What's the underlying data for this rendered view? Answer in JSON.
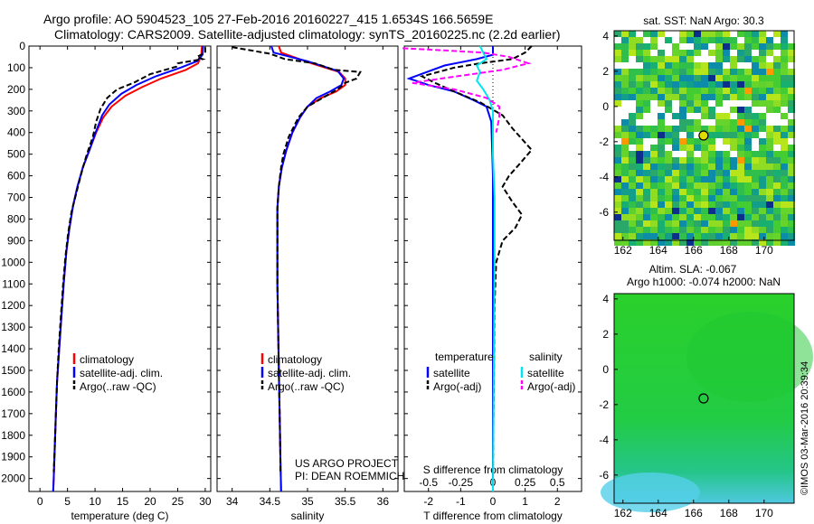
{
  "header": {
    "title_line1": "Argo profile: AO 5904523_105 27-Feb-2016 20160227_415 1.6534S 166.5659E",
    "title_line2": "Climatology: CARS2009. Satellite-adjusted climatology: synTS_20160225.nc (2.2d earlier)"
  },
  "chart_data": [
    {
      "id": "temperature",
      "type": "line",
      "xlabel": "temperature (deg C)",
      "ylabel": "",
      "xlim": [
        -2,
        31
      ],
      "ylim": [
        2060,
        0
      ],
      "xticks": [
        0,
        5,
        10,
        15,
        20,
        25,
        30
      ],
      "yticks": [
        0,
        100,
        200,
        300,
        400,
        500,
        600,
        700,
        800,
        900,
        1000,
        1100,
        1200,
        1300,
        1400,
        1500,
        1600,
        1700,
        1800,
        1900,
        2000
      ],
      "legend": [
        "climatology",
        "satellite-adj. clim.",
        "Argo(..raw -QC)"
      ],
      "series": [
        {
          "name": "climatology",
          "color": "#ff0000",
          "dash": "",
          "points": [
            [
              29.4,
              0
            ],
            [
              29.3,
              40
            ],
            [
              28.7,
              80
            ],
            [
              26.5,
              110
            ],
            [
              22,
              150
            ],
            [
              18.5,
              190
            ],
            [
              15.5,
              230
            ],
            [
              13,
              280
            ],
            [
              11.5,
              330
            ],
            [
              10.2,
              400
            ],
            [
              9,
              480
            ],
            [
              7.8,
              560
            ],
            [
              6.8,
              650
            ],
            [
              6,
              740
            ],
            [
              5.3,
              850
            ],
            [
              4.8,
              950
            ],
            [
              4.3,
              1100
            ],
            [
              3.9,
              1250
            ],
            [
              3.5,
              1400
            ],
            [
              3.1,
              1550
            ],
            [
              2.9,
              1700
            ],
            [
              2.7,
              1850
            ],
            [
              2.5,
              2000
            ],
            [
              2.4,
              2060
            ]
          ]
        },
        {
          "name": "satellite-adj. clim.",
          "color": "#0000ff",
          "dash": "",
          "points": [
            [
              29.6,
              0
            ],
            [
              29.5,
              40
            ],
            [
              28.5,
              70
            ],
            [
              25.5,
              100
            ],
            [
              21,
              140
            ],
            [
              17.5,
              180
            ],
            [
              14.8,
              220
            ],
            [
              12.6,
              270
            ],
            [
              11.3,
              320
            ],
            [
              10.1,
              400
            ],
            [
              9,
              480
            ],
            [
              7.8,
              560
            ],
            [
              6.8,
              650
            ],
            [
              6,
              740
            ],
            [
              5.3,
              850
            ],
            [
              4.8,
              950
            ],
            [
              4.3,
              1100
            ],
            [
              3.9,
              1250
            ],
            [
              3.5,
              1400
            ],
            [
              3.1,
              1550
            ],
            [
              2.9,
              1700
            ],
            [
              2.7,
              1850
            ],
            [
              2.5,
              2000
            ],
            [
              2.4,
              2060
            ]
          ]
        },
        {
          "name": "Argo(..raw -QC)",
          "color": "#000000",
          "dash": "6,3",
          "points": [
            [
              30,
              5
            ],
            [
              30,
              30
            ],
            [
              28.5,
              50
            ],
            [
              29.5,
              60
            ],
            [
              25,
              80
            ],
            [
              24.8,
              95
            ],
            [
              20,
              130
            ],
            [
              17,
              170
            ],
            [
              14,
              200
            ],
            [
              12.2,
              240
            ],
            [
              11,
              290
            ],
            [
              10.2,
              350
            ],
            [
              9.6,
              420
            ],
            [
              8.5,
              500
            ],
            [
              7.6,
              580
            ],
            [
              6.7,
              670
            ],
            [
              5.7,
              770
            ],
            [
              5.1,
              870
            ],
            [
              4.6,
              980
            ],
            [
              4.2,
              1100
            ],
            [
              3.8,
              1250
            ],
            [
              3.4,
              1400
            ],
            [
              3.1,
              1550
            ],
            [
              2.9,
              1700
            ],
            [
              2.7,
              1850
            ],
            [
              2.5,
              1970
            ]
          ]
        }
      ]
    },
    {
      "id": "salinity",
      "type": "line",
      "xlabel": "salinity",
      "xlim": [
        33.8,
        36.2
      ],
      "ylim": [
        2060,
        0
      ],
      "xticks": [
        34,
        34.5,
        35,
        35.5,
        36
      ],
      "legend": [
        "climatology",
        "satellite-adj. clim.",
        "Argo(..raw -QC)"
      ],
      "series": [
        {
          "name": "climatology",
          "color": "#ff0000",
          "dash": "",
          "points": [
            [
              34.62,
              0
            ],
            [
              34.65,
              30
            ],
            [
              35.05,
              80
            ],
            [
              35.42,
              120
            ],
            [
              35.5,
              150
            ],
            [
              35.5,
              180
            ],
            [
              35.38,
              210
            ],
            [
              35.18,
              240
            ],
            [
              35.0,
              280
            ],
            [
              34.9,
              330
            ],
            [
              34.8,
              400
            ],
            [
              34.72,
              480
            ],
            [
              34.66,
              560
            ],
            [
              34.62,
              650
            ],
            [
              34.6,
              750
            ],
            [
              34.6,
              900
            ],
            [
              34.6,
              1100
            ],
            [
              34.61,
              1300
            ],
            [
              34.62,
              1500
            ],
            [
              34.63,
              1700
            ],
            [
              34.64,
              1900
            ],
            [
              34.65,
              2060
            ]
          ]
        },
        {
          "name": "satellite-adj. clim.",
          "color": "#0000ff",
          "dash": "",
          "points": [
            [
              34.52,
              0
            ],
            [
              34.55,
              30
            ],
            [
              35.0,
              70
            ],
            [
              35.4,
              115
            ],
            [
              35.48,
              150
            ],
            [
              35.45,
              180
            ],
            [
              35.3,
              210
            ],
            [
              35.12,
              240
            ],
            [
              35.0,
              280
            ],
            [
              34.9,
              330
            ],
            [
              34.8,
              400
            ],
            [
              34.72,
              480
            ],
            [
              34.66,
              560
            ],
            [
              34.62,
              650
            ],
            [
              34.6,
              750
            ],
            [
              34.6,
              900
            ],
            [
              34.6,
              1100
            ],
            [
              34.61,
              1300
            ],
            [
              34.62,
              1500
            ],
            [
              34.63,
              1700
            ],
            [
              34.64,
              1900
            ],
            [
              34.65,
              2060
            ]
          ]
        },
        {
          "name": "Argo(..raw -QC)",
          "color": "#000000",
          "dash": "6,3",
          "points": [
            [
              34.0,
              5
            ],
            [
              34.25,
              20
            ],
            [
              34.5,
              35
            ],
            [
              34.7,
              60
            ],
            [
              35.1,
              80
            ],
            [
              35.35,
              110
            ],
            [
              35.7,
              120
            ],
            [
              35.65,
              150
            ],
            [
              35.5,
              170
            ],
            [
              35.4,
              200
            ],
            [
              35.2,
              240
            ],
            [
              35.0,
              280
            ],
            [
              34.88,
              330
            ],
            [
              34.75,
              420
            ],
            [
              34.68,
              500
            ],
            [
              34.65,
              560
            ],
            [
              34.62,
              650
            ],
            [
              34.6,
              750
            ],
            [
              34.6,
              900
            ],
            [
              34.6,
              1100
            ],
            [
              34.61,
              1300
            ],
            [
              34.62,
              1500
            ],
            [
              34.63,
              1700
            ],
            [
              34.64,
              1900
            ],
            [
              34.64,
              1970
            ]
          ]
        }
      ],
      "annotations": [
        "US ARGO PROJECT",
        "PI: DEAN ROEMMICH"
      ]
    },
    {
      "id": "difference",
      "type": "line",
      "xlabel": "T difference from climatology",
      "top_label": "S difference from climatology",
      "xlim": [
        -2.75,
        2.75
      ],
      "ylim": [
        2060,
        0
      ],
      "xticks": [
        -2,
        -1,
        0,
        1,
        2
      ],
      "top_ticks": [
        "-0.5",
        "-0.25",
        "0",
        "0.25",
        "0.5"
      ],
      "top_tick_values": [
        -2,
        -1,
        0,
        1,
        2
      ],
      "legend_headers": [
        "temperature",
        "salinity"
      ],
      "legend": [
        "satellite",
        "Argo(-adj)",
        "satellite",
        "Argo(-adj)"
      ],
      "series": [
        {
          "name": "temperature satellite",
          "color": "#0000ff",
          "dash": "",
          "points": [
            [
              0,
              0
            ],
            [
              0,
              40
            ],
            [
              -0.5,
              60
            ],
            [
              -1.5,
              90
            ],
            [
              -2.6,
              150
            ],
            [
              -2.0,
              180
            ],
            [
              -1.2,
              210
            ],
            [
              -0.6,
              250
            ],
            [
              -0.2,
              280
            ],
            [
              -0.05,
              350
            ],
            [
              0,
              600
            ],
            [
              0,
              1000
            ],
            [
              0,
              2060
            ]
          ]
        },
        {
          "name": "temperature Argo(-adj)",
          "color": "#000000",
          "dash": "6,3",
          "points": [
            [
              1.2,
              0
            ],
            [
              1.0,
              30
            ],
            [
              0.6,
              60
            ],
            [
              -0.4,
              80
            ],
            [
              -1.2,
              100
            ],
            [
              -2.2,
              140
            ],
            [
              -1.8,
              170
            ],
            [
              -1.2,
              210
            ],
            [
              -0.4,
              260
            ],
            [
              0.3,
              320
            ],
            [
              0.6,
              380
            ],
            [
              0.9,
              430
            ],
            [
              1.2,
              480
            ],
            [
              0.8,
              550
            ],
            [
              0.5,
              600
            ],
            [
              0.3,
              650
            ],
            [
              0.6,
              720
            ],
            [
              0.9,
              780
            ],
            [
              0.7,
              840
            ],
            [
              0.3,
              900
            ],
            [
              0.1,
              1000
            ],
            [
              0.05,
              1200
            ],
            [
              0,
              2000
            ]
          ]
        },
        {
          "name": "salinity satellite",
          "color": "#00e5ee",
          "dash": "",
          "points": [
            [
              -0.4,
              0
            ],
            [
              -0.3,
              30
            ],
            [
              -0.2,
              60
            ],
            [
              -0.5,
              90
            ],
            [
              -0.4,
              120
            ],
            [
              -0.5,
              160
            ],
            [
              -0.3,
              200
            ],
            [
              -0.1,
              250
            ],
            [
              0,
              300
            ],
            [
              0,
              500
            ],
            [
              0.05,
              700
            ],
            [
              0.05,
              1000
            ],
            [
              0,
              2060
            ]
          ]
        },
        {
          "name": "salinity Argo(-adj)",
          "color": "#ff00ff",
          "dash": "6,3",
          "points": [
            [
              -2.8,
              10
            ],
            [
              -1.5,
              20
            ],
            [
              -0.3,
              30
            ],
            [
              0.5,
              50
            ],
            [
              1.1,
              80
            ],
            [
              0.3,
              110
            ],
            [
              -1.6,
              150
            ],
            [
              -2.5,
              170
            ],
            [
              -1.2,
              200
            ],
            [
              -0.2,
              240
            ],
            [
              0.2,
              280
            ],
            [
              0.2,
              330
            ],
            [
              0.1,
              400
            ]
          ]
        }
      ]
    },
    {
      "id": "sst_map",
      "type": "heatmap",
      "title": "sat. SST: NaN Argo: 30.3",
      "xticks": [
        162,
        164,
        166,
        168,
        170
      ],
      "yticks": [
        4,
        2,
        0,
        -2,
        -4,
        -6
      ],
      "xlim": [
        161.5,
        171.7
      ],
      "ylim": [
        -7.6,
        4.3
      ],
      "marker": {
        "lon": 166.57,
        "lat": -1.65
      }
    },
    {
      "id": "sla_map",
      "type": "heatmap",
      "title_line1": "Altim. SLA: -0.067",
      "title_line2": "Argo h1000: -0.074 h2000: NaN",
      "xticks": [
        162,
        164,
        166,
        168,
        170
      ],
      "yticks": [
        4,
        2,
        0,
        -2,
        -4,
        -6
      ],
      "xlim": [
        161.5,
        171.7
      ],
      "ylim": [
        -7.6,
        4.3
      ],
      "marker": {
        "lon": 166.57,
        "lat": -1.65
      }
    }
  ],
  "footer": {
    "stamp": "©IMOS 03-Mar-2016 20:39:34"
  }
}
